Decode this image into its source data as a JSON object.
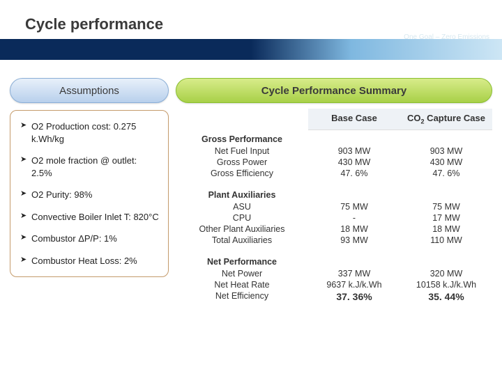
{
  "header": {
    "title": "Cycle performance",
    "brand_name": "Unity Power Alliance",
    "brand_tag": "One Goal – Zero Emissions"
  },
  "left": {
    "pill": "Assumptions",
    "assumptions": [
      "O2 Production cost: 0.275 k.Wh/kg",
      "O2 mole fraction @ outlet: 2.5%",
      "O2 Purity: 98%",
      "Convective Boiler Inlet T: 820°C",
      "Combustor ΔP/P: 1%",
      "Combustor Heat Loss: 2%"
    ]
  },
  "right": {
    "pill": "Cycle Performance Summary",
    "col1": "Base Case",
    "col2_html": "CO<sub>2</sub> Capture Case",
    "sections": [
      {
        "name": "Gross Performance",
        "labels": [
          "Net Fuel Input",
          "Gross Power",
          "Gross Efficiency"
        ],
        "base": [
          "903 MW",
          "430 MW",
          "47. 6%"
        ],
        "capt": [
          "903 MW",
          "430 MW",
          "47. 6%"
        ]
      },
      {
        "name": "Plant Auxiliaries",
        "labels": [
          "ASU",
          "CPU",
          "Other Plant Auxiliaries",
          "Total Auxiliaries"
        ],
        "base": [
          "75 MW",
          "-",
          "18 MW",
          "93 MW"
        ],
        "capt": [
          "75 MW",
          "17 MW",
          "18 MW",
          "110 MW"
        ]
      },
      {
        "name": "Net Performance",
        "labels": [
          "Net Power",
          "Net Heat Rate",
          "Net Efficiency"
        ],
        "base": [
          "337 MW",
          "9637 k.J/k.Wh",
          "37. 36%"
        ],
        "capt": [
          "320 MW",
          "10158 k.J/k.Wh",
          "35. 44%"
        ],
        "bold_last": true
      }
    ]
  },
  "colors": {
    "header_navy": "#0a2a5a",
    "header_sky": "#7fb8e0",
    "pill_blue_top": "#e8f0fa",
    "pill_blue_bot": "#b8d0ec",
    "pill_green_top": "#d8ec8a",
    "pill_green_bot": "#a8d048",
    "box_border": "#c49a6a"
  }
}
